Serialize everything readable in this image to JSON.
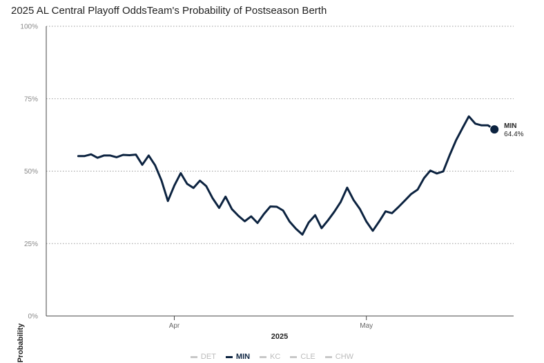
{
  "title": "2025 AL Central Playoff OddsTeam's Probability of Postseason Berth",
  "chart_data": {
    "type": "line",
    "title": "2025 AL Central Playoff OddsTeam's Probability of Postseason Berth",
    "xlabel": "2025",
    "ylabel": "Probability",
    "ylim": [
      0,
      100
    ],
    "yticks": [
      "0%",
      "25%",
      "50%",
      "75%",
      "100%"
    ],
    "ytick_values": [
      0,
      25,
      50,
      75,
      100
    ],
    "xticks": [
      "Apr",
      "May"
    ],
    "xtick_dates": [
      "2025-04-01",
      "2025-05-01"
    ],
    "grid": "horizontal dotted",
    "legend_position": "bottom",
    "series": [
      {
        "name": "MIN",
        "color": "#0C2340",
        "end_label": "MIN",
        "end_value_label": "64.4%",
        "points": [
          [
            "2025-03-17",
            55.2
          ],
          [
            "2025-03-18",
            55.2
          ],
          [
            "2025-03-19",
            55.8
          ],
          [
            "2025-03-20",
            54.6
          ],
          [
            "2025-03-21",
            55.4
          ],
          [
            "2025-03-22",
            55.4
          ],
          [
            "2025-03-23",
            54.8
          ],
          [
            "2025-03-24",
            55.6
          ],
          [
            "2025-03-25",
            55.5
          ],
          [
            "2025-03-26",
            55.7
          ],
          [
            "2025-03-27",
            52.2
          ],
          [
            "2025-03-28",
            55.4
          ],
          [
            "2025-03-29",
            52.0
          ],
          [
            "2025-03-30",
            46.8
          ],
          [
            "2025-03-31",
            39.7
          ],
          [
            "2025-04-01",
            45.0
          ],
          [
            "2025-04-02",
            49.3
          ],
          [
            "2025-04-03",
            45.6
          ],
          [
            "2025-04-04",
            44.2
          ],
          [
            "2025-04-05",
            46.7
          ],
          [
            "2025-04-06",
            44.8
          ],
          [
            "2025-04-07",
            40.6
          ],
          [
            "2025-04-08",
            37.3
          ],
          [
            "2025-04-09",
            41.2
          ],
          [
            "2025-04-10",
            36.9
          ],
          [
            "2025-04-11",
            34.6
          ],
          [
            "2025-04-12",
            32.7
          ],
          [
            "2025-04-13",
            34.4
          ],
          [
            "2025-04-14",
            32.1
          ],
          [
            "2025-04-15",
            35.2
          ],
          [
            "2025-04-16",
            37.8
          ],
          [
            "2025-04-17",
            37.7
          ],
          [
            "2025-04-18",
            36.4
          ],
          [
            "2025-04-19",
            32.6
          ],
          [
            "2025-04-20",
            30.1
          ],
          [
            "2025-04-21",
            28.1
          ],
          [
            "2025-04-22",
            32.3
          ],
          [
            "2025-04-23",
            34.8
          ],
          [
            "2025-04-24",
            30.3
          ],
          [
            "2025-04-25",
            33.0
          ],
          [
            "2025-04-26",
            36.0
          ],
          [
            "2025-04-27",
            39.4
          ],
          [
            "2025-04-28",
            44.3
          ],
          [
            "2025-04-29",
            40.0
          ],
          [
            "2025-04-30",
            36.9
          ],
          [
            "2025-05-01",
            32.6
          ],
          [
            "2025-05-02",
            29.4
          ],
          [
            "2025-05-03",
            32.6
          ],
          [
            "2025-05-04",
            36.1
          ],
          [
            "2025-05-05",
            35.5
          ],
          [
            "2025-05-06",
            37.6
          ],
          [
            "2025-05-07",
            39.8
          ],
          [
            "2025-05-08",
            42.1
          ],
          [
            "2025-05-09",
            43.6
          ],
          [
            "2025-05-10",
            47.6
          ],
          [
            "2025-05-11",
            50.2
          ],
          [
            "2025-05-12",
            49.2
          ],
          [
            "2025-05-13",
            49.9
          ],
          [
            "2025-05-14",
            55.5
          ],
          [
            "2025-05-15",
            60.6
          ],
          [
            "2025-05-16",
            64.8
          ],
          [
            "2025-05-17",
            68.9
          ],
          [
            "2025-05-18",
            66.4
          ],
          [
            "2025-05-19",
            65.8
          ],
          [
            "2025-05-20",
            65.8
          ],
          [
            "2025-05-21",
            64.4
          ]
        ]
      }
    ],
    "legend": [
      {
        "name": "DET",
        "active": false,
        "color": "#c8c8c8"
      },
      {
        "name": "MIN",
        "active": true,
        "color": "#0C2340"
      },
      {
        "name": "KC",
        "active": false,
        "color": "#c8c8c8"
      },
      {
        "name": "CLE",
        "active": false,
        "color": "#c8c8c8"
      },
      {
        "name": "CHW",
        "active": false,
        "color": "#c8c8c8"
      }
    ]
  }
}
